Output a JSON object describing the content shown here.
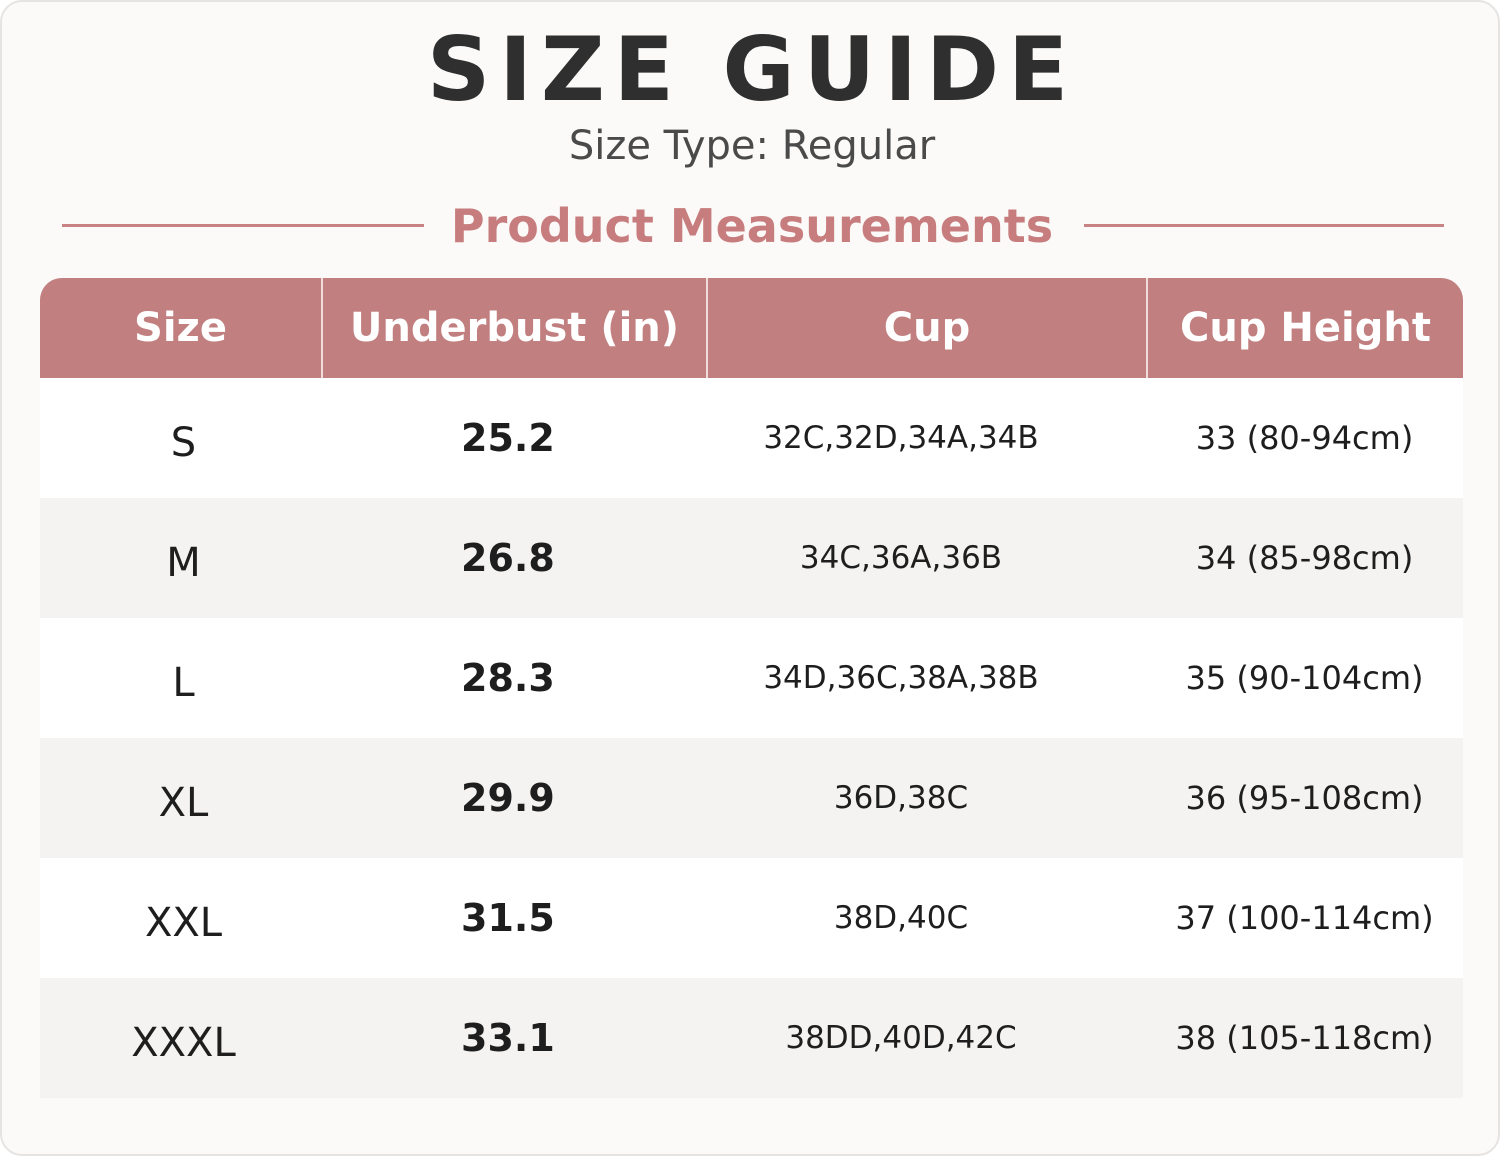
{
  "header": {
    "title": "SIZE GUIDE",
    "subtitle": "Size Type: Regular"
  },
  "section": {
    "title": "Product Measurements",
    "accent_color": "#c27f80"
  },
  "table": {
    "columns": [
      "Size",
      "Underbust (in)",
      "Cup",
      "Cup Height"
    ],
    "rows": [
      {
        "size": "S",
        "underbust": "25.2",
        "cup": "32C,32D,34A,34B",
        "cup_height": "33 (80-94cm)"
      },
      {
        "size": "M",
        "underbust": "26.8",
        "cup": "34C,36A,36B",
        "cup_height": "34 (85-98cm)"
      },
      {
        "size": "L",
        "underbust": "28.3",
        "cup": "34D,36C,38A,38B",
        "cup_height": "35 (90-104cm)"
      },
      {
        "size": "XL",
        "underbust": "29.9",
        "cup": "36D,38C",
        "cup_height": "36 (95-108cm)"
      },
      {
        "size": "XXL",
        "underbust": "31.5",
        "cup": "38D,40C",
        "cup_height": "37 (100-114cm)"
      },
      {
        "size": "XXXL",
        "underbust": "33.1",
        "cup": "38DD,40D,42C",
        "cup_height": "38 (105-118cm)"
      }
    ]
  }
}
